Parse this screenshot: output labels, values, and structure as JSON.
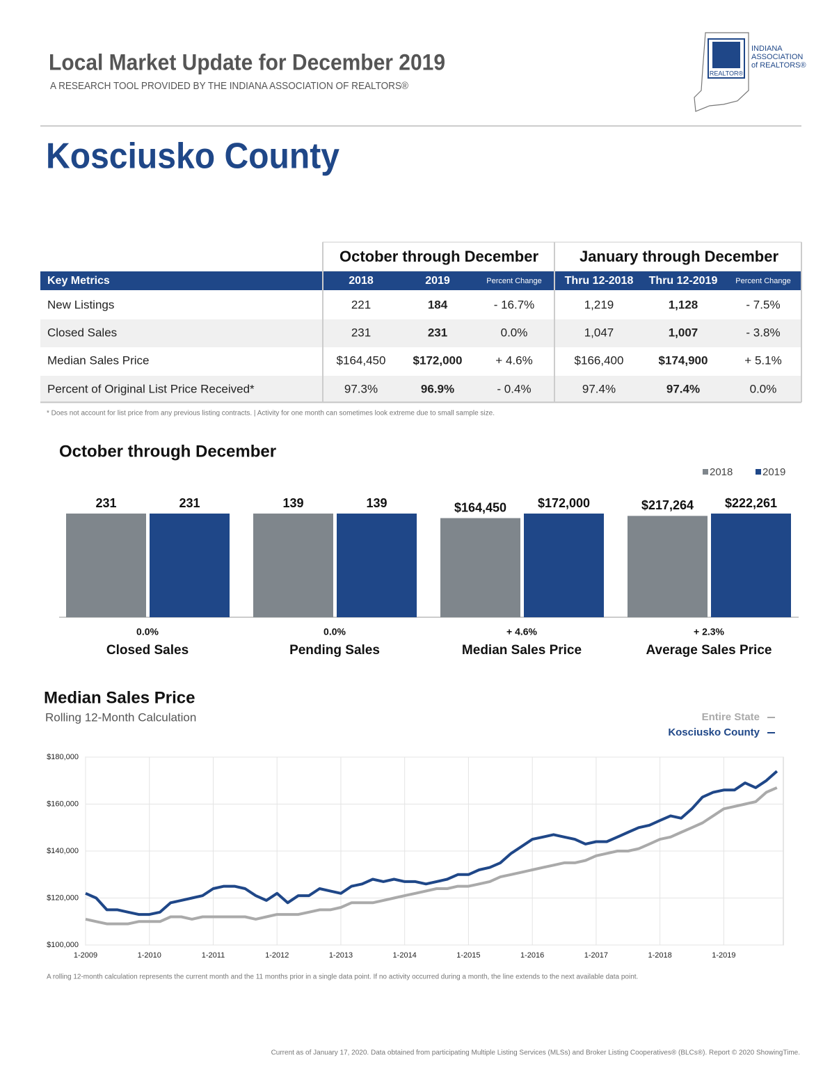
{
  "header": {
    "title": "Local Market Update for December 2019",
    "subtitle": "A RESEARCH TOOL PROVIDED BY THE INDIANA ASSOCIATION OF REALTORS®",
    "logo_lines": [
      "INDIANA",
      "ASSOCIATION",
      "of REALTORS®"
    ],
    "logo_mark": "REALTOR®"
  },
  "county": "Kosciusko County",
  "table": {
    "group_headers": [
      "October through December",
      "January through December"
    ],
    "columns": [
      "Key Metrics",
      "2018",
      "2019",
      "Percent Change",
      "Thru 12-2018",
      "Thru 12-2019",
      "Percent Change"
    ],
    "rows": [
      [
        "New Listings",
        "221",
        "184",
        "- 16.7%",
        "1,219",
        "1,128",
        "- 7.5%"
      ],
      [
        "Closed Sales",
        "231",
        "231",
        "0.0%",
        "1,047",
        "1,007",
        "- 3.8%"
      ],
      [
        "Median Sales Price",
        "$164,450",
        "$172,000",
        "+ 4.6%",
        "$166,400",
        "$174,900",
        "+ 5.1%"
      ],
      [
        "Percent of Original List Price Received*",
        "97.3%",
        "96.9%",
        "- 0.4%",
        "97.4%",
        "97.4%",
        "0.0%"
      ]
    ],
    "footnote": "* Does not account for list price from any previous listing contracts.  |  Activity for one month can sometimes look extreme due to small sample size."
  },
  "chart_data": [
    {
      "type": "bar",
      "title": "October through December",
      "categories": [
        "Closed Sales",
        "Pending Sales",
        "Median Sales Price",
        "Average Sales Price"
      ],
      "changes": [
        "0.0%",
        "0.0%",
        "+ 4.6%",
        "+ 2.3%"
      ],
      "series": [
        {
          "name": "2018",
          "color": "#7f868c",
          "values": [
            231,
            139,
            164450,
            217264
          ],
          "value_labels": [
            "231",
            "139",
            "$164,450",
            "$217,264"
          ]
        },
        {
          "name": "2019",
          "color": "#1f4788",
          "values": [
            231,
            139,
            172000,
            222261
          ],
          "value_labels": [
            "231",
            "139",
            "$172,000",
            "$222,261"
          ]
        }
      ]
    },
    {
      "type": "line",
      "title": "Median Sales Price",
      "subtitle": "Rolling 12-Month Calculation",
      "categories": [
        "1-2009",
        null,
        null,
        null,
        null,
        null,
        "1-2010",
        null,
        null,
        null,
        null,
        null,
        "1-2011",
        null,
        null,
        null,
        null,
        null,
        "1-2012",
        null,
        null,
        null,
        null,
        null,
        "1-2013",
        null,
        null,
        null,
        null,
        null,
        "1-2014",
        null,
        null,
        null,
        null,
        null,
        "1-2015",
        null,
        null,
        null,
        null,
        null,
        "1-2016",
        null,
        null,
        null,
        null,
        null,
        "1-2017",
        null,
        null,
        null,
        null,
        null,
        "1-2018",
        null,
        null,
        null,
        null,
        null,
        "1-2019",
        null,
        null,
        null,
        null,
        null
      ],
      "series": [
        {
          "name": "Entire State",
          "color": "#aaaaaa",
          "values": [
            111000,
            110000,
            109000,
            109000,
            109000,
            110000,
            110000,
            110000,
            112000,
            112000,
            111000,
            112000,
            112000,
            112000,
            112000,
            112000,
            111000,
            112000,
            113000,
            113000,
            113000,
            114000,
            115000,
            115000,
            116000,
            118000,
            118000,
            118000,
            119000,
            120000,
            121000,
            122000,
            123000,
            124000,
            124000,
            125000,
            125000,
            126000,
            127000,
            129000,
            130000,
            131000,
            132000,
            133000,
            134000,
            135000,
            135000,
            136000,
            138000,
            139000,
            140000,
            140000,
            141000,
            143000,
            145000,
            146000,
            148000,
            150000,
            152000,
            155000,
            158000,
            159000,
            160000,
            161000,
            165000,
            167000
          ]
        },
        {
          "name": "Kosciusko County",
          "color": "#1f4788",
          "values": [
            122000,
            120000,
            115000,
            115000,
            114000,
            113000,
            113000,
            114000,
            118000,
            119000,
            120000,
            121000,
            124000,
            125000,
            125000,
            124000,
            121000,
            119000,
            122000,
            118000,
            121000,
            121000,
            124000,
            123000,
            122000,
            125000,
            126000,
            128000,
            127000,
            128000,
            127000,
            127000,
            126000,
            127000,
            128000,
            130000,
            130000,
            132000,
            133000,
            135000,
            139000,
            142000,
            145000,
            146000,
            147000,
            146000,
            145000,
            143000,
            144000,
            144000,
            146000,
            148000,
            150000,
            151000,
            153000,
            155000,
            154000,
            158000,
            163000,
            165000,
            166000,
            166000,
            169000,
            167000,
            170000,
            174000
          ]
        }
      ],
      "ylim": [
        100000,
        180000
      ],
      "yticks": [
        {
          "value": 100000,
          "label": "$100,000"
        },
        {
          "value": 120000,
          "label": "$120,000"
        },
        {
          "value": 140000,
          "label": "$140,000"
        },
        {
          "value": 160000,
          "label": "$160,000"
        },
        {
          "value": 180000,
          "label": "$180,000"
        }
      ],
      "grid": true,
      "note": "A rolling 12-month calculation represents the current month and the 11 months prior in a single data point. If no activity occurred during a month, the line extends to the next available data point."
    }
  ],
  "footer": "Current as of January 17, 2020. Data obtained from participating Multiple Listing Services (MLSs) and Broker Listing Cooperatives® (BLCs®). Report © 2020 ShowingTime."
}
